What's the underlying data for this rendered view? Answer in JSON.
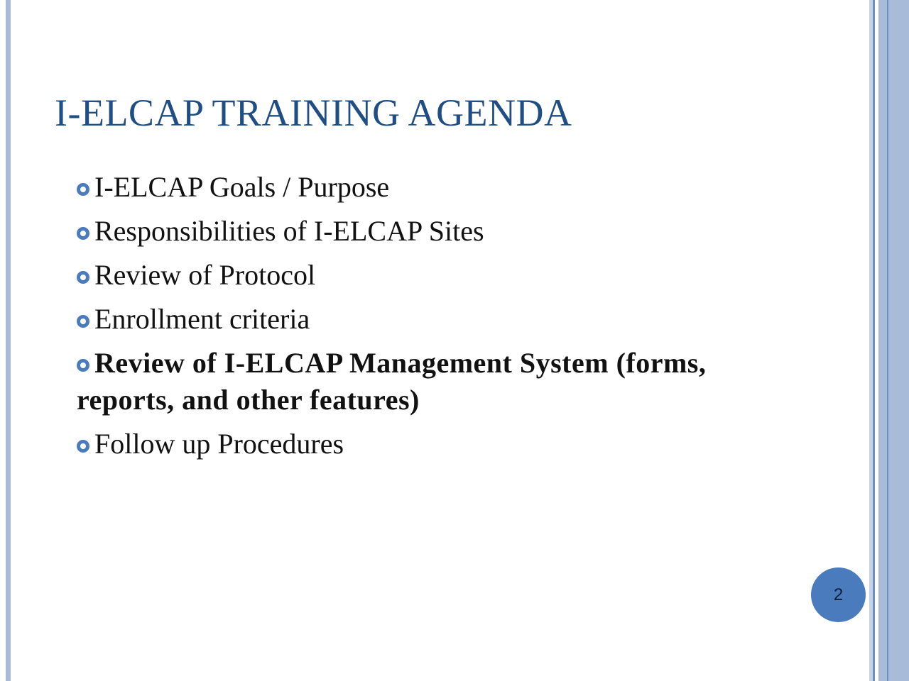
{
  "slide": {
    "title": "I-ELCAP TRAINING AGENDA",
    "agenda_items": [
      {
        "text": "I-ELCAP Goals / Purpose",
        "bold": false
      },
      {
        "text": "Responsibilities of I-ELCAP Sites",
        "bold": false
      },
      {
        "text": "Review of Protocol",
        "bold": false
      },
      {
        "text": "Enrollment criteria",
        "bold": false
      },
      {
        "text": "Review of I-ELCAP Management System (forms, reports, and other features)",
        "bold": true
      },
      {
        "text": "Follow up Procedures",
        "bold": false
      }
    ],
    "page_number": "2"
  },
  "colors": {
    "title": "#1f4e85",
    "bullet": "#4a7bbd",
    "border_light": "#a8bbd8",
    "page_badge": "#4a7bbd"
  }
}
